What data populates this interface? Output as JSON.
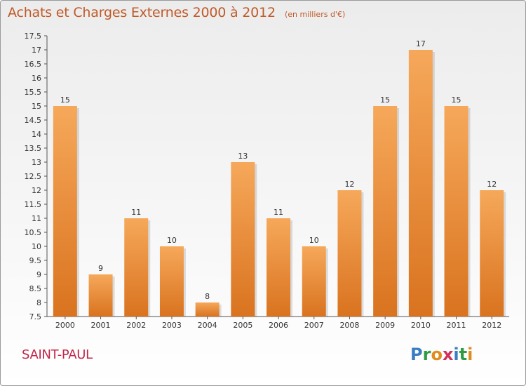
{
  "header": {
    "title": "Achats et Charges Externes 2000 à 2012",
    "unit": "(en milliers d'€)"
  },
  "footer": {
    "city": "SAINT-PAUL",
    "logo_letters": [
      "P",
      "r",
      "o",
      "x",
      "i",
      "t",
      "i"
    ]
  },
  "colors": {
    "bar_light": "#f6a85a",
    "bar_dark": "#d9731f",
    "title": "#c05a28",
    "city": "#c0264a"
  },
  "chart_data": {
    "type": "bar",
    "title": "Achats et Charges Externes 2000 à 2012",
    "xlabel": "",
    "ylabel": "",
    "categories": [
      "2000",
      "2001",
      "2002",
      "2003",
      "2004",
      "2005",
      "2006",
      "2007",
      "2008",
      "2009",
      "2010",
      "2011",
      "2012"
    ],
    "values": [
      15,
      9,
      11,
      10,
      8,
      13,
      11,
      10,
      12,
      15,
      17,
      15,
      12
    ],
    "ylim": [
      7.5,
      17.5
    ],
    "yticks": [
      "7.5",
      "8",
      "8.5",
      "9",
      "9.5",
      "10",
      "10.5",
      "11",
      "11.5",
      "12",
      "12.5",
      "13",
      "13.5",
      "14",
      "14.5",
      "15",
      "15.5",
      "16",
      "16.5",
      "17",
      "17.5"
    ],
    "grid": false,
    "legend": "none"
  }
}
